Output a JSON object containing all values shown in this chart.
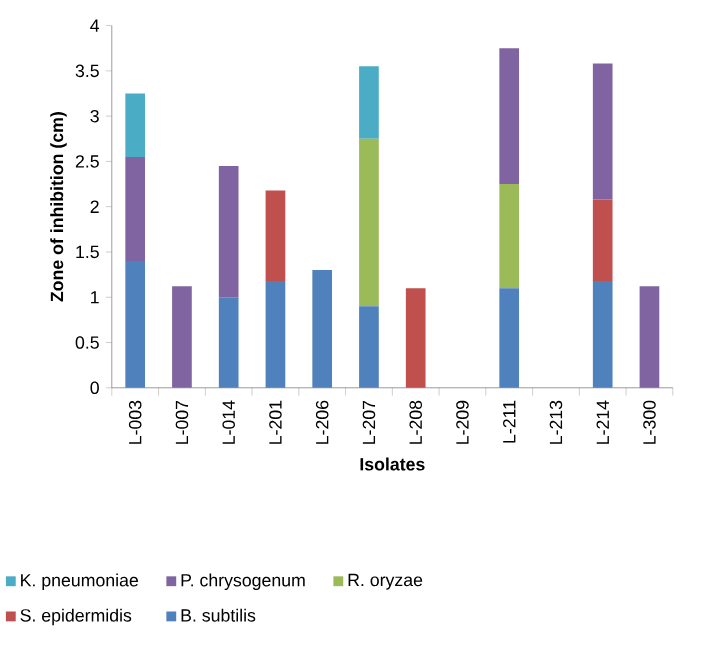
{
  "chart_data": {
    "type": "bar",
    "stacked": true,
    "xlabel": "Isolates",
    "ylabel": "Zone of inhibition (cm)",
    "categories": [
      "L-003",
      "L-007",
      "L-014",
      "L-201",
      "L-206",
      "L-207",
      "L-208",
      "L-209",
      "L-211",
      "L-213",
      "L-214",
      "L-300"
    ],
    "series": [
      {
        "name": "B. subtilis",
        "color": "#4f81bd",
        "values": [
          1.4,
          null,
          1.0,
          1.18,
          1.3,
          0.9,
          null,
          null,
          1.1,
          null,
          1.18,
          null
        ]
      },
      {
        "name": "S. epidermidis",
        "color": "#c0504d",
        "values": [
          null,
          null,
          null,
          1.0,
          null,
          null,
          1.1,
          null,
          null,
          null,
          0.9,
          null
        ]
      },
      {
        "name": "R. oryzae",
        "color": "#9bbb59",
        "values": [
          null,
          null,
          null,
          null,
          null,
          1.85,
          null,
          null,
          1.15,
          null,
          null,
          null
        ]
      },
      {
        "name": "P. chrysogenum",
        "color": "#8064a2",
        "values": [
          1.15,
          1.12,
          1.45,
          null,
          null,
          null,
          null,
          null,
          1.5,
          null,
          1.5,
          1.12
        ]
      },
      {
        "name": "K. pneumoniae",
        "color": "#4bacc6",
        "values": [
          0.7,
          null,
          null,
          null,
          null,
          0.8,
          null,
          null,
          null,
          null,
          null,
          null
        ]
      }
    ],
    "ylim": [
      0,
      4
    ],
    "yticks": [
      0,
      0.5,
      1,
      1.5,
      2,
      2.5,
      3,
      3.5,
      4
    ],
    "legend": "bottom",
    "grid": false
  }
}
